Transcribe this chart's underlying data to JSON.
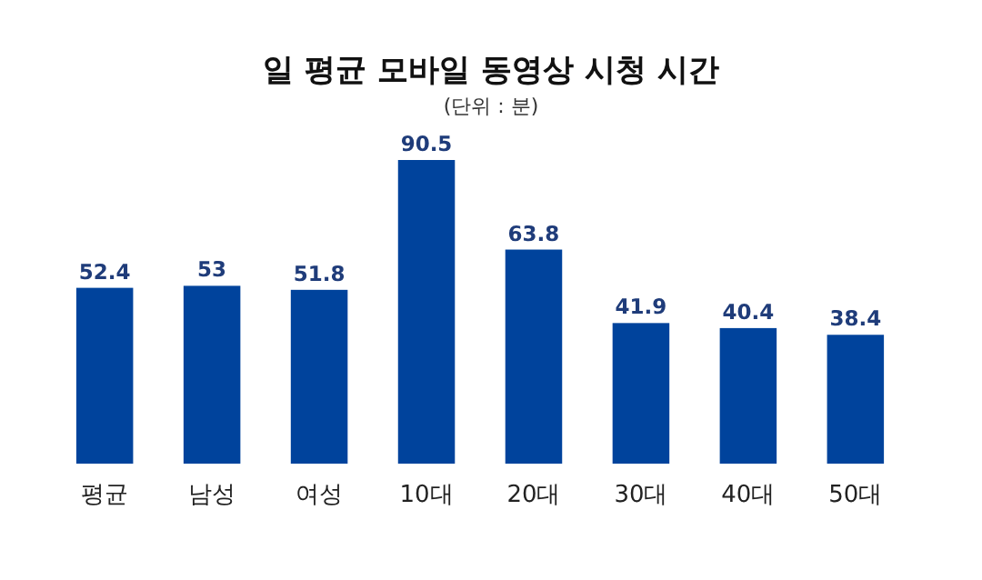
{
  "chart_data": {
    "type": "bar",
    "title": "일 평균 모바일 동영상 시청 시간",
    "subtitle": "(단위 : 분)",
    "categories": [
      "평균",
      "남성",
      "여성",
      "10대",
      "20대",
      "30대",
      "40대",
      "50대"
    ],
    "values": [
      52.4,
      53,
      51.8,
      90.5,
      63.8,
      41.9,
      40.4,
      38.4
    ],
    "color": "#00439c",
    "data_labels": true
  }
}
